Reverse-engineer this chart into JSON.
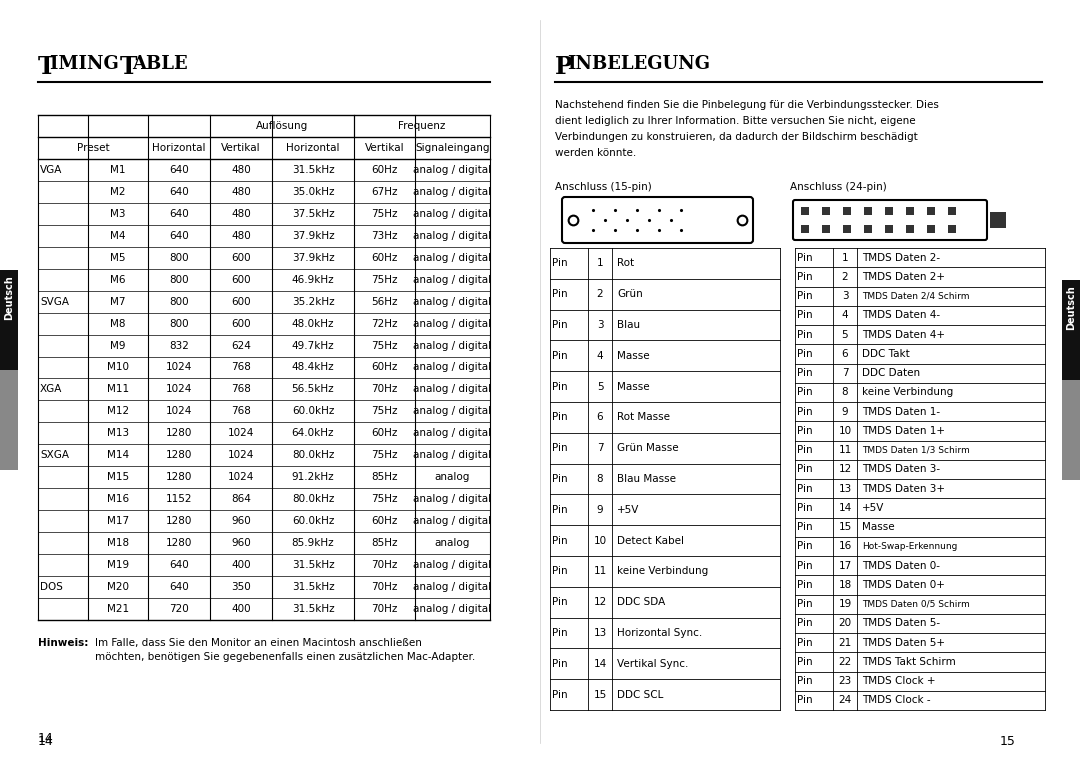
{
  "bg_color": "#ffffff",
  "tab_subheader_auflosung": "Auflösung",
  "tab_subheader_frequenz": "Frequenz",
  "timing_rows": [
    [
      "VGA",
      "M1",
      "640",
      "480",
      "31.5kHz",
      "60Hz",
      "analog / digital"
    ],
    [
      "",
      "M2",
      "640",
      "480",
      "35.0kHz",
      "67Hz",
      "analog / digital"
    ],
    [
      "",
      "M3",
      "640",
      "480",
      "37.5kHz",
      "75Hz",
      "analog / digital"
    ],
    [
      "",
      "M4",
      "640",
      "480",
      "37.9kHz",
      "73Hz",
      "analog / digital"
    ],
    [
      "",
      "M5",
      "800",
      "600",
      "37.9kHz",
      "60Hz",
      "analog / digital"
    ],
    [
      "",
      "M6",
      "800",
      "600",
      "46.9kHz",
      "75Hz",
      "analog / digital"
    ],
    [
      "SVGA",
      "M7",
      "800",
      "600",
      "35.2kHz",
      "56Hz",
      "analog / digital"
    ],
    [
      "",
      "M8",
      "800",
      "600",
      "48.0kHz",
      "72Hz",
      "analog / digital"
    ],
    [
      "",
      "M9",
      "832",
      "624",
      "49.7kHz",
      "75Hz",
      "analog / digital"
    ],
    [
      "",
      "M10",
      "1024",
      "768",
      "48.4kHz",
      "60Hz",
      "analog / digital"
    ],
    [
      "XGA",
      "M11",
      "1024",
      "768",
      "56.5kHz",
      "70Hz",
      "analog / digital"
    ],
    [
      "",
      "M12",
      "1024",
      "768",
      "60.0kHz",
      "75Hz",
      "analog / digital"
    ],
    [
      "",
      "M13",
      "1280",
      "1024",
      "64.0kHz",
      "60Hz",
      "analog / digital"
    ],
    [
      "SXGA",
      "M14",
      "1280",
      "1024",
      "80.0kHz",
      "75Hz",
      "analog / digital"
    ],
    [
      "",
      "M15",
      "1280",
      "1024",
      "91.2kHz",
      "85Hz",
      "analog"
    ],
    [
      "",
      "M16",
      "1152",
      "864",
      "80.0kHz",
      "75Hz",
      "analog / digital"
    ],
    [
      "",
      "M17",
      "1280",
      "960",
      "60.0kHz",
      "60Hz",
      "analog / digital"
    ],
    [
      "",
      "M18",
      "1280",
      "960",
      "85.9kHz",
      "85Hz",
      "analog"
    ],
    [
      "",
      "M19",
      "640",
      "400",
      "31.5kHz",
      "70Hz",
      "analog / digital"
    ],
    [
      "DOS",
      "M20",
      "640",
      "350",
      "31.5kHz",
      "70Hz",
      "analog / digital"
    ],
    [
      "",
      "M21",
      "720",
      "400",
      "31.5kHz",
      "70Hz",
      "analog / digital"
    ]
  ],
  "pinbelegung_intro": "Nachstehend finden Sie die Pinbelegung für die Verbindungsstecker. Dies\ndient lediglich zu Ihrer Information. Bitte versuchen Sie nicht, eigene\nVerbindungen zu konstruieren, da dadurch der Bildschirm beschädigt\nwerden könnte.",
  "anschluss15_label": "Anschluss (15-pin)",
  "anschluss24_label": "Anschluss (24-pin)",
  "pin15_rows": [
    [
      "Pin",
      "1",
      "Rot"
    ],
    [
      "Pin",
      "2",
      "Grün"
    ],
    [
      "Pin",
      "3",
      "Blau"
    ],
    [
      "Pin",
      "4",
      "Masse"
    ],
    [
      "Pin",
      "5",
      "Masse"
    ],
    [
      "Pin",
      "6",
      "Rot Masse"
    ],
    [
      "Pin",
      "7",
      "Grün Masse"
    ],
    [
      "Pin",
      "8",
      "Blau Masse"
    ],
    [
      "Pin",
      "9",
      "+5V"
    ],
    [
      "Pin",
      "10",
      "Detect Kabel"
    ],
    [
      "Pin",
      "11",
      "keine Verbindung"
    ],
    [
      "Pin",
      "12",
      "DDC SDA"
    ],
    [
      "Pin",
      "13",
      "Horizontal Sync."
    ],
    [
      "Pin",
      "14",
      "Vertikal Sync."
    ],
    [
      "Pin",
      "15",
      "DDC SCL"
    ]
  ],
  "pin24_rows": [
    [
      "Pin",
      "1",
      "TMDS Daten 2-"
    ],
    [
      "Pin",
      "2",
      "TMDS Daten 2+"
    ],
    [
      "Pin",
      "3",
      "TMDS Daten 2/4 Schirm"
    ],
    [
      "Pin",
      "4",
      "TMDS Daten 4-"
    ],
    [
      "Pin",
      "5",
      "TMDS Daten 4+"
    ],
    [
      "Pin",
      "6",
      "DDC Takt"
    ],
    [
      "Pin",
      "7",
      "DDC Daten"
    ],
    [
      "Pin",
      "8",
      "keine Verbindung"
    ],
    [
      "Pin",
      "9",
      "TMDS Daten 1-"
    ],
    [
      "Pin",
      "10",
      "TMDS Daten 1+"
    ],
    [
      "Pin",
      "11",
      "TMDS Daten 1/3 Schirm"
    ],
    [
      "Pin",
      "12",
      "TMDS Daten 3-"
    ],
    [
      "Pin",
      "13",
      "TMDS Daten 3+"
    ],
    [
      "Pin",
      "14",
      "+5V"
    ],
    [
      "Pin",
      "15",
      "Masse"
    ],
    [
      "Pin",
      "16",
      "Hot-Swap-Erkennung"
    ],
    [
      "Pin",
      "17",
      "TMDS Daten 0-"
    ],
    [
      "Pin",
      "18",
      "TMDS Daten 0+"
    ],
    [
      "Pin",
      "19",
      "TMDS Daten 0/5 Schirm"
    ],
    [
      "Pin",
      "20",
      "TMDS Daten 5-"
    ],
    [
      "Pin",
      "21",
      "TMDS Daten 5+"
    ],
    [
      "Pin",
      "22",
      "TMDS Takt Schirm"
    ],
    [
      "Pin",
      "23",
      "TMDS Clock +"
    ],
    [
      "Pin",
      "24",
      "TMDS Clock -"
    ]
  ],
  "page_num_left": "14",
  "page_num_right": "15"
}
